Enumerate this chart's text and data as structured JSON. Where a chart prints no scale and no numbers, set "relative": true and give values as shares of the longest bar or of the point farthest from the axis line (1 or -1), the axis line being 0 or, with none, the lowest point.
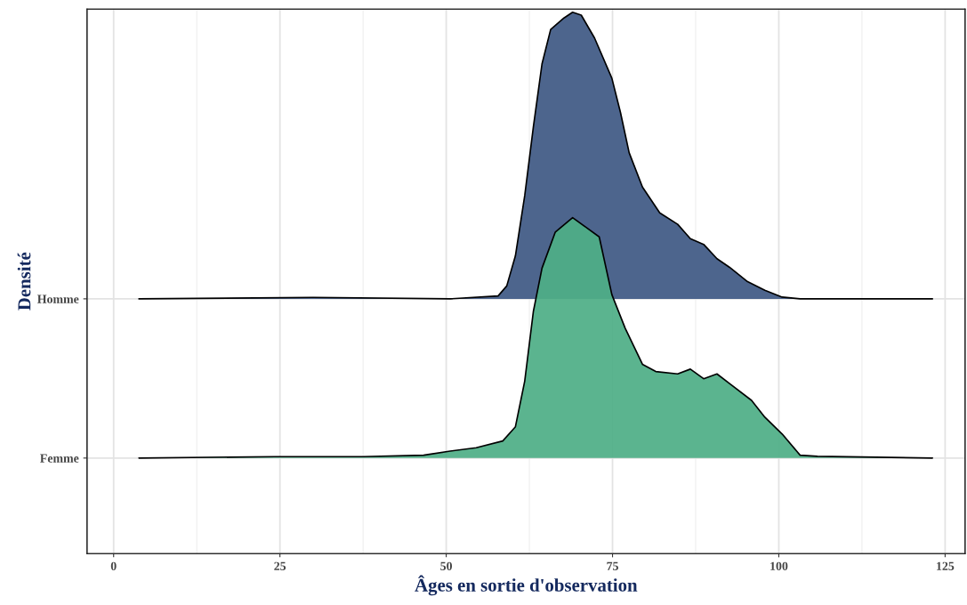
{
  "chart_data": [
    {
      "type": "area",
      "relative": true,
      "xlim": [
        -4,
        128
      ],
      "xticks": [
        0,
        25,
        50,
        75,
        100,
        125
      ],
      "grid": true,
      "tick_labels": false,
      "series": [
        {
          "name": "Homme",
          "color": "#4d658d",
          "x": [
            3.8,
            30,
            50.6,
            57.8,
            59.1,
            60.4,
            61.8,
            63.1,
            64.4,
            65.7,
            67.7,
            69.0,
            70.3,
            72.3,
            74.9,
            76.2,
            77.5,
            79.5,
            82.1,
            84.8,
            86.7,
            88.7,
            90.7,
            92.6,
            95.3,
            97.9,
            100.5,
            103.2,
            123.1
          ],
          "values": [
            0,
            0.005,
            0,
            0.01,
            0.045,
            0.15,
            0.36,
            0.6,
            0.82,
            0.94,
            0.98,
            1.0,
            0.99,
            0.91,
            0.77,
            0.65,
            0.51,
            0.39,
            0.3,
            0.26,
            0.21,
            0.19,
            0.14,
            0.11,
            0.06,
            0.03,
            0.006,
            0,
            0
          ]
        }
      ]
    },
    {
      "type": "area",
      "relative": true,
      "xlabel": "Âges en sortie d'observation",
      "ylabel": "Densité",
      "xlim": [
        -4,
        128
      ],
      "xticks": [
        0,
        25,
        50,
        75,
        100,
        125
      ],
      "series": [
        {
          "name": "Femme",
          "color": "#4fae87",
          "x": [
            3.8,
            24.3,
            37.5,
            46.6,
            50.6,
            54.5,
            58.5,
            60.4,
            61.8,
            63.1,
            64.4,
            66.4,
            69.0,
            71.0,
            73.0,
            74.9,
            76.9,
            79.5,
            81.5,
            84.8,
            86.7,
            88.7,
            90.7,
            92.6,
            95.9,
            97.9,
            100.5,
            103.2,
            105.8,
            123.1
          ],
          "values": [
            0,
            0.006,
            0.006,
            0.012,
            0.029,
            0.043,
            0.071,
            0.13,
            0.32,
            0.61,
            0.79,
            0.94,
            1.0,
            0.96,
            0.92,
            0.68,
            0.54,
            0.39,
            0.36,
            0.35,
            0.37,
            0.33,
            0.35,
            0.31,
            0.24,
            0.17,
            0.1,
            0.012,
            0.007,
            0
          ]
        }
      ]
    }
  ]
}
